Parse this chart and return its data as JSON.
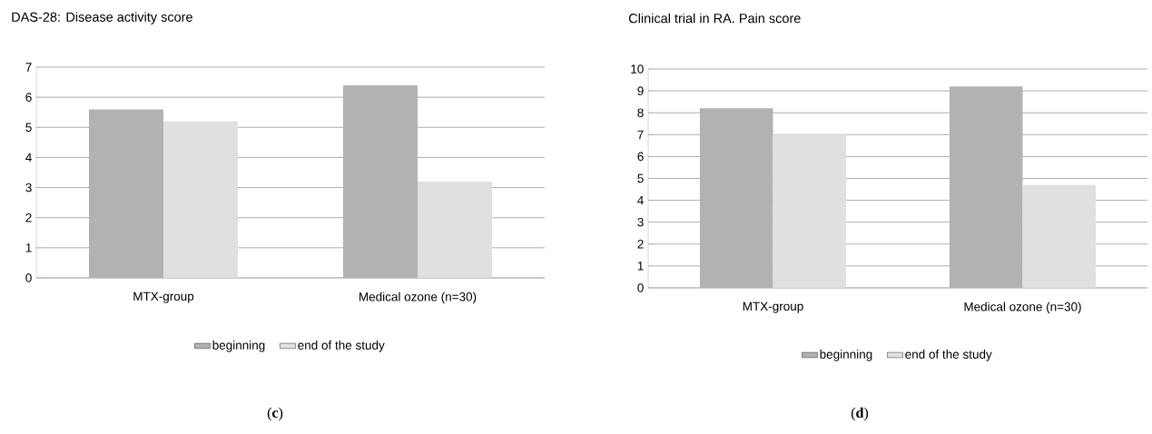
{
  "chart_data": [
    {
      "type": "bar",
      "title": "DAS-28: Disease activity score",
      "categories": [
        "MTX-group",
        "Medical ozone (n=30)"
      ],
      "series": [
        {
          "name": "beginning",
          "color": "#b2b2b2",
          "values": [
            5.6,
            6.4
          ]
        },
        {
          "name": "end of the study",
          "color": "#e0e0e0",
          "values": [
            5.2,
            3.2
          ]
        }
      ],
      "ylim": [
        0,
        7
      ],
      "yticks": [
        0,
        1,
        2,
        3,
        4,
        5,
        6,
        7
      ],
      "grid": "y",
      "legend": "bottom",
      "annotations": [
        "(**c**)"
      ]
    },
    {
      "type": "bar",
      "title": "Clinical trial in RA. Pain score",
      "categories": [
        "MTX-group",
        "Medical ozone (n=30)"
      ],
      "series": [
        {
          "name": "beginning",
          "color": "#b2b2b2",
          "values": [
            8.2,
            9.2
          ]
        },
        {
          "name": "end of the study",
          "color": "#e0e0e0",
          "values": [
            7.0,
            4.7
          ]
        }
      ],
      "ylim": [
        0,
        10
      ],
      "yticks": [
        0,
        1,
        2,
        3,
        4,
        5,
        6,
        7,
        8,
        9,
        10
      ],
      "grid": "y",
      "legend": "bottom",
      "annotations": [
        "(**d**)"
      ]
    }
  ]
}
